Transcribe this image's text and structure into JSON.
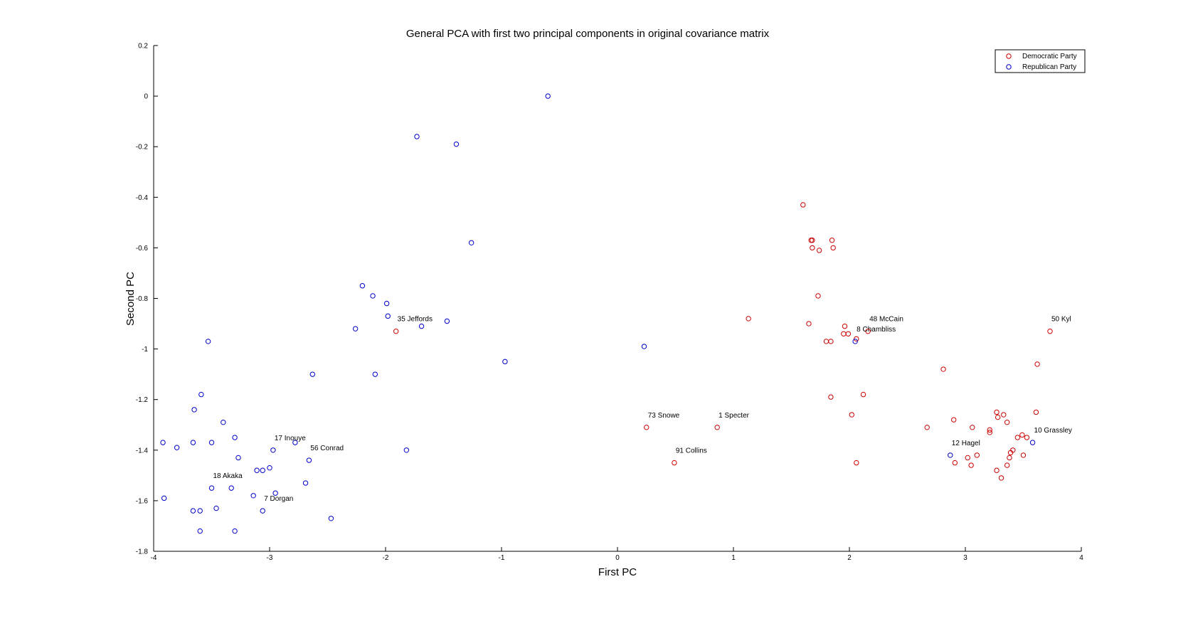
{
  "chart_data": {
    "type": "scatter",
    "title": "General PCA with first two principal components in original covariance matrix",
    "xlabel": "First PC",
    "ylabel": "Second PC",
    "xlim": [
      -4,
      4
    ],
    "ylim": [
      -1.8,
      0.2
    ],
    "xticks": [
      "-4",
      "-3",
      "-2",
      "-1",
      "0",
      "1",
      "2",
      "3",
      "4"
    ],
    "xtick_values": [
      -4,
      -3,
      -2,
      -1,
      0,
      1,
      2,
      3,
      4
    ],
    "yticks": [
      "0.2",
      "0",
      "-0.2",
      "-0.4",
      "-0.6",
      "-0.8",
      "-1",
      "-1.2",
      "-1.4",
      "-1.6",
      "-1.8"
    ],
    "ytick_values": [
      0.2,
      0,
      -0.2,
      -0.4,
      -0.6,
      -0.8,
      -1,
      -1.2,
      -1.4,
      -1.6,
      -1.8
    ],
    "grid": false,
    "legend_position": "top-right",
    "series": [
      {
        "name": "Democratic Party",
        "color": "#cc0000",
        "marker": "circle-open",
        "points": [
          [
            -1.91,
            -0.93
          ],
          [
            0.25,
            -1.31
          ],
          [
            0.86,
            -1.31
          ],
          [
            0.49,
            -1.45
          ],
          [
            1.13,
            -0.88
          ],
          [
            1.6,
            -0.43
          ],
          [
            1.67,
            -0.57
          ],
          [
            1.68,
            -0.57
          ],
          [
            1.68,
            -0.6
          ],
          [
            1.74,
            -0.61
          ],
          [
            1.85,
            -0.57
          ],
          [
            1.86,
            -0.6
          ],
          [
            1.73,
            -0.79
          ],
          [
            1.65,
            -0.9
          ],
          [
            1.96,
            -0.91
          ],
          [
            1.95,
            -0.94
          ],
          [
            1.99,
            -0.94
          ],
          [
            1.8,
            -0.97
          ],
          [
            1.84,
            -0.97
          ],
          [
            2.06,
            -0.96
          ],
          [
            2.16,
            -0.93
          ],
          [
            2.12,
            -1.18
          ],
          [
            1.84,
            -1.19
          ],
          [
            2.02,
            -1.26
          ],
          [
            2.06,
            -1.45
          ],
          [
            2.67,
            -1.31
          ],
          [
            2.81,
            -1.08
          ],
          [
            2.9,
            -1.28
          ],
          [
            2.91,
            -1.45
          ],
          [
            3.02,
            -1.43
          ],
          [
            3.05,
            -1.46
          ],
          [
            3.1,
            -1.42
          ],
          [
            3.06,
            -1.31
          ],
          [
            3.21,
            -1.32
          ],
          [
            3.21,
            -1.33
          ],
          [
            3.27,
            -1.25
          ],
          [
            3.28,
            -1.27
          ],
          [
            3.33,
            -1.26
          ],
          [
            3.36,
            -1.29
          ],
          [
            3.27,
            -1.48
          ],
          [
            3.31,
            -1.51
          ],
          [
            3.36,
            -1.46
          ],
          [
            3.38,
            -1.43
          ],
          [
            3.39,
            -1.41
          ],
          [
            3.41,
            -1.4
          ],
          [
            3.45,
            -1.35
          ],
          [
            3.49,
            -1.34
          ],
          [
            3.53,
            -1.35
          ],
          [
            3.5,
            -1.42
          ],
          [
            3.61,
            -1.25
          ],
          [
            3.62,
            -1.06
          ],
          [
            3.73,
            -0.93
          ]
        ]
      },
      {
        "name": "Republican Party",
        "color": "#0000cc",
        "marker": "circle-open",
        "points": [
          [
            -0.6,
            0.0
          ],
          [
            -1.73,
            -0.16
          ],
          [
            -1.39,
            -0.19
          ],
          [
            -1.26,
            -0.58
          ],
          [
            -2.2,
            -0.75
          ],
          [
            -2.11,
            -0.79
          ],
          [
            -1.99,
            -0.82
          ],
          [
            -1.98,
            -0.87
          ],
          [
            -1.69,
            -0.91
          ],
          [
            -1.47,
            -0.89
          ],
          [
            -2.26,
            -0.92
          ],
          [
            -0.97,
            -1.05
          ],
          [
            -2.09,
            -1.1
          ],
          [
            -2.63,
            -1.1
          ],
          [
            -1.82,
            -1.4
          ],
          [
            -3.53,
            -0.97
          ],
          [
            -3.59,
            -1.18
          ],
          [
            -3.65,
            -1.24
          ],
          [
            -3.4,
            -1.29
          ],
          [
            -3.3,
            -1.35
          ],
          [
            -3.92,
            -1.37
          ],
          [
            -3.8,
            -1.39
          ],
          [
            -3.66,
            -1.37
          ],
          [
            -3.5,
            -1.37
          ],
          [
            -3.27,
            -1.43
          ],
          [
            -2.97,
            -1.4
          ],
          [
            -2.78,
            -1.37
          ],
          [
            -2.66,
            -1.44
          ],
          [
            -3.0,
            -1.47
          ],
          [
            -3.06,
            -1.48
          ],
          [
            -3.11,
            -1.48
          ],
          [
            -3.5,
            -1.55
          ],
          [
            -3.33,
            -1.55
          ],
          [
            -2.69,
            -1.53
          ],
          [
            -2.95,
            -1.57
          ],
          [
            -3.14,
            -1.58
          ],
          [
            -3.91,
            -1.59
          ],
          [
            -3.46,
            -1.63
          ],
          [
            -3.6,
            -1.64
          ],
          [
            -3.66,
            -1.64
          ],
          [
            -3.06,
            -1.64
          ],
          [
            -2.47,
            -1.67
          ],
          [
            -3.3,
            -1.72
          ],
          [
            -3.6,
            -1.72
          ],
          [
            0.23,
            -0.99
          ],
          [
            2.05,
            -0.97
          ],
          [
            2.87,
            -1.42
          ],
          [
            3.58,
            -1.37
          ]
        ]
      }
    ],
    "annotations": [
      {
        "text": "35 Jeffords",
        "x": -1.91,
        "y": -0.93
      },
      {
        "text": "73 Snowe",
        "x": 0.25,
        "y": -1.31
      },
      {
        "text": "1 Specter",
        "x": 0.86,
        "y": -1.31
      },
      {
        "text": "91 Collins",
        "x": 0.49,
        "y": -1.45
      },
      {
        "text": "48 McCain",
        "x": 2.16,
        "y": -0.93
      },
      {
        "text": "8 Chambliss",
        "x": 2.05,
        "y": -0.97
      },
      {
        "text": "50 Kyl",
        "x": 3.73,
        "y": -0.93
      },
      {
        "text": "12 Hagel",
        "x": 2.87,
        "y": -1.42
      },
      {
        "text": "10 Grassley",
        "x": 3.58,
        "y": -1.37
      },
      {
        "text": "17 Inouye",
        "x": -2.97,
        "y": -1.4
      },
      {
        "text": "56 Conrad",
        "x": -2.66,
        "y": -1.44
      },
      {
        "text": "18 Akaka",
        "x": -3.5,
        "y": -1.55
      },
      {
        "text": "7 Dorgan",
        "x": -3.06,
        "y": -1.64
      }
    ]
  }
}
